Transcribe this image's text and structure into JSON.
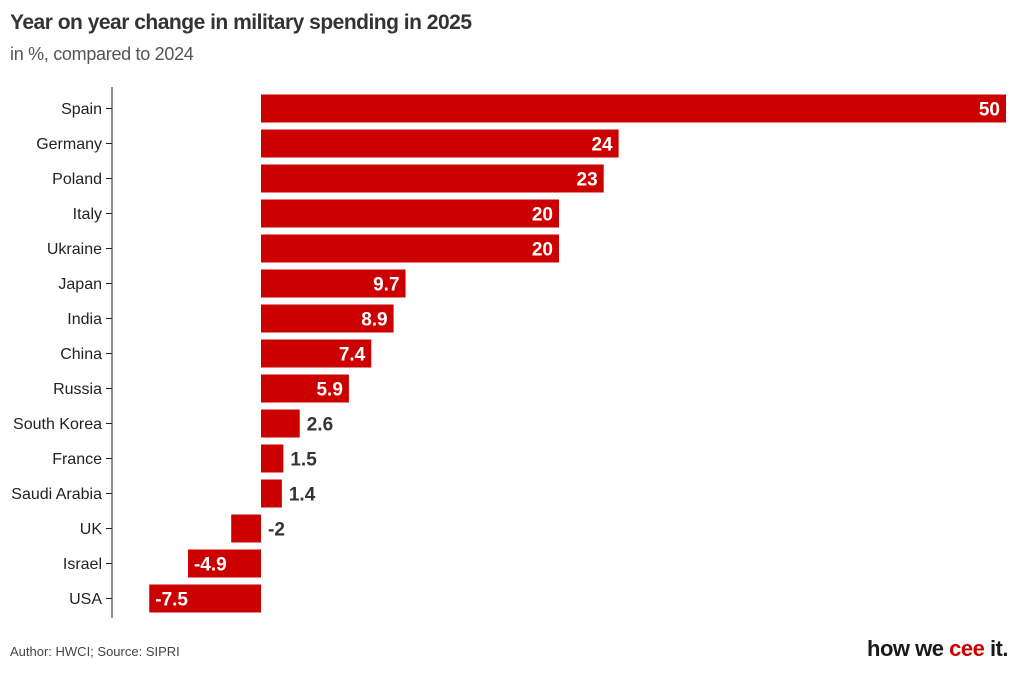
{
  "header": {
    "title": "Year on year change in military spending in 2025",
    "subtitle": "in %, compared to 2024"
  },
  "footer": {
    "credit": "Author: HWCI; Source: SIPRI"
  },
  "brand": {
    "prefix": "how we ",
    "accent_word": "cee",
    "suffix": " it."
  },
  "colors": {
    "bar": "#cc0000",
    "brand_accent": "#cc0000"
  },
  "chart_data": {
    "type": "bar",
    "orientation": "horizontal",
    "title": "Year on year change in military spending in 2025",
    "subtitle": "in %, compared to 2024",
    "xlabel": "",
    "ylabel": "",
    "grid": false,
    "categories": [
      "Spain",
      "Germany",
      "Poland",
      "Italy",
      "Ukraine",
      "Japan",
      "India",
      "China",
      "Russia",
      "South Korea",
      "France",
      "Saudi Arabia",
      "UK",
      "Israel",
      "USA"
    ],
    "values": [
      50,
      24,
      23,
      20,
      20,
      9.7,
      8.9,
      7.4,
      5.9,
      2.6,
      1.5,
      1.4,
      -2,
      -4.9,
      -7.5
    ],
    "xlim": [
      -10,
      50
    ]
  }
}
